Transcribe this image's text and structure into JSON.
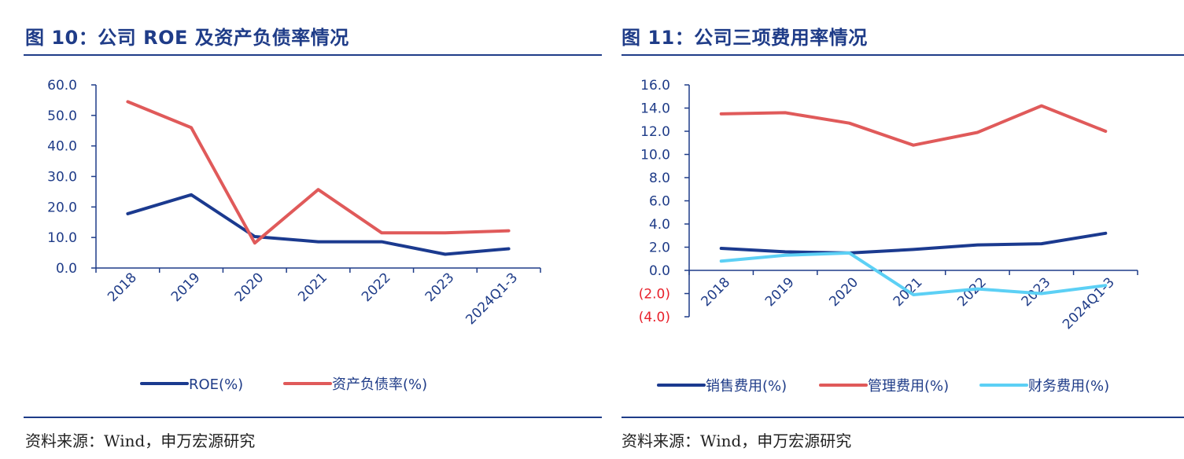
{
  "figures": [
    {
      "title": "图 10：公司 ROE 及资产负债率情况",
      "source": "资料来源：Wind，申万宏源研究"
    },
    {
      "title": "图 11：公司三项费用率情况",
      "source": "资料来源：Wind，申万宏源研究"
    }
  ],
  "chart_data": [
    {
      "type": "line",
      "title": "图 10：公司 ROE 及资产负债率情况",
      "categories": [
        "2018",
        "2019",
        "2020",
        "2021",
        "2022",
        "2023",
        "2024Q1-3"
      ],
      "ylim": [
        0,
        60
      ],
      "yticks": [
        "0.0",
        "10.0",
        "20.0",
        "30.0",
        "40.0",
        "50.0",
        "60.0"
      ],
      "ytick_values": [
        0,
        10,
        20,
        30,
        40,
        50,
        60
      ],
      "grid": false,
      "legend_position": "bottom",
      "series": [
        {
          "name": "ROE(%)",
          "color": "#1b3a8f",
          "values": [
            17.8,
            24.0,
            10.3,
            8.6,
            8.6,
            4.5,
            6.3
          ]
        },
        {
          "name": "资产负债率(%)",
          "color": "#e05a5a",
          "values": [
            54.5,
            46.0,
            8.2,
            25.7,
            11.5,
            11.5,
            12.2
          ]
        }
      ]
    },
    {
      "type": "line",
      "title": "图 11：公司三项费用率情况",
      "categories": [
        "2018",
        "2019",
        "2020",
        "2021",
        "2022",
        "2023",
        "2024Q1-3"
      ],
      "ylim": [
        -4,
        16
      ],
      "yticks": [
        "(4.0)",
        "(2.0)",
        "0.0",
        "2.0",
        "4.0",
        "6.0",
        "8.0",
        "10.0",
        "12.0",
        "14.0",
        "16.0"
      ],
      "ytick_values": [
        -4,
        -2,
        0,
        2,
        4,
        6,
        8,
        10,
        12,
        14,
        16
      ],
      "negative_tick_color": "#e8202a",
      "grid": false,
      "legend_position": "bottom",
      "series": [
        {
          "name": "销售费用(%)",
          "color": "#1b3a8f",
          "values": [
            1.9,
            1.6,
            1.5,
            1.8,
            2.2,
            2.3,
            3.2
          ]
        },
        {
          "name": "管理费用(%)",
          "color": "#e05a5a",
          "values": [
            13.5,
            13.6,
            12.7,
            10.8,
            11.9,
            14.2,
            12.0
          ]
        },
        {
          "name": "财务费用(%)",
          "color": "#5cd0f5",
          "values": [
            0.8,
            1.3,
            1.5,
            -2.1,
            -1.6,
            -2.0,
            -1.3
          ]
        }
      ]
    }
  ]
}
